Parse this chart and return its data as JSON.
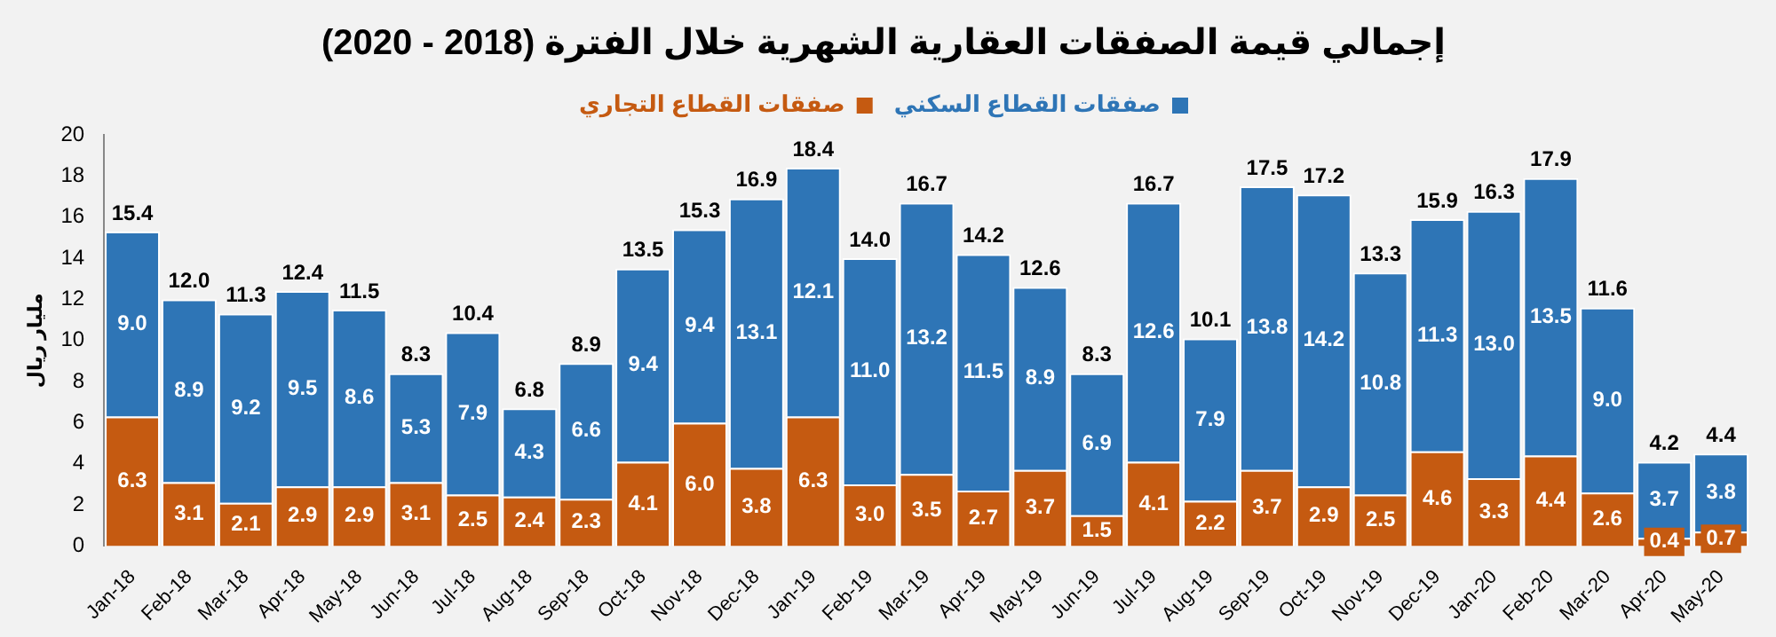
{
  "chart_data": {
    "type": "bar",
    "title": "إجمالي قيمة الصفقات العقارية الشهرية خلال الفترة (2018 - 2020)",
    "ylabel": "مليار ريال",
    "categories": [
      "Jan-18",
      "Feb-18",
      "Mar-18",
      "Apr-18",
      "May-18",
      "Jun-18",
      "Jul-18",
      "Aug-18",
      "Sep-18",
      "Oct-18",
      "Nov-18",
      "Dec-18",
      "Jan-19",
      "Feb-19",
      "Mar-19",
      "Apr-19",
      "May-19",
      "Jun-19",
      "Jul-19",
      "Aug-19",
      "Sep-19",
      "Oct-19",
      "Nov-19",
      "Dec-19",
      "Jan-20",
      "Feb-20",
      "Mar-20",
      "Apr-20",
      "May-20"
    ],
    "stacked": true,
    "series": [
      {
        "name": "صفقات القطاع التجاري",
        "color": "#c55a11",
        "values": [
          6.3,
          3.1,
          2.1,
          2.9,
          2.9,
          3.1,
          2.5,
          2.4,
          2.3,
          4.1,
          6.0,
          3.8,
          6.3,
          3.0,
          3.5,
          2.7,
          3.7,
          1.5,
          4.1,
          2.2,
          3.7,
          2.9,
          2.5,
          4.6,
          3.3,
          4.4,
          2.6,
          0.4,
          0.7
        ],
        "value_labels": [
          "6.3",
          "3.1",
          "2.1",
          "2.9",
          "2.9",
          "3.1",
          "2.5",
          "2.4",
          "2.3",
          "4.1",
          "6.0",
          "3.8",
          "6.3",
          "3.0",
          "3.5",
          "2.7",
          "3.7",
          "1.5",
          "4.1",
          "2.2",
          "3.7",
          "2.9",
          "2.5",
          "4.6",
          "3.3",
          "4.4",
          "2.6",
          "0.4",
          "0.7"
        ]
      },
      {
        "name": "صفقات القطاع السكني",
        "color": "#2e75b6",
        "values": [
          9.0,
          8.9,
          9.2,
          9.5,
          8.6,
          5.3,
          7.9,
          4.3,
          6.6,
          9.4,
          9.4,
          13.1,
          12.1,
          11.0,
          13.2,
          11.5,
          8.9,
          6.9,
          12.6,
          7.9,
          13.8,
          14.2,
          10.8,
          11.3,
          13.0,
          13.5,
          9.0,
          3.7,
          3.8
        ],
        "value_labels": [
          "9.0",
          "8.9",
          "9.2",
          "9.5",
          "8.6",
          "5.3",
          "7.9",
          "4.3",
          "6.6",
          "9.4",
          "9.4",
          "13.1",
          "12.1",
          "11.0",
          "13.2",
          "11.5",
          "8.9",
          "6.9",
          "12.6",
          "7.9",
          "13.8",
          "14.2",
          "10.8",
          "11.3",
          "13.0",
          "13.5",
          "9.0",
          "3.7",
          "3.8"
        ]
      }
    ],
    "totals": [
      "15.4",
      "12.0",
      "11.3",
      "12.4",
      "11.5",
      "8.3",
      "10.4",
      "6.8",
      "8.9",
      "13.5",
      "15.3",
      "16.9",
      "18.4",
      "14.0",
      "16.7",
      "14.2",
      "12.6",
      "8.3",
      "16.7",
      "10.1",
      "17.5",
      "17.2",
      "13.3",
      "15.9",
      "16.3",
      "17.9",
      "11.6",
      "4.2",
      "4.4"
    ],
    "ylim": [
      0,
      20
    ],
    "yticks": [
      0,
      2,
      4,
      6,
      8,
      10,
      12,
      14,
      16,
      18,
      20
    ],
    "grid": false,
    "legend": "top"
  }
}
